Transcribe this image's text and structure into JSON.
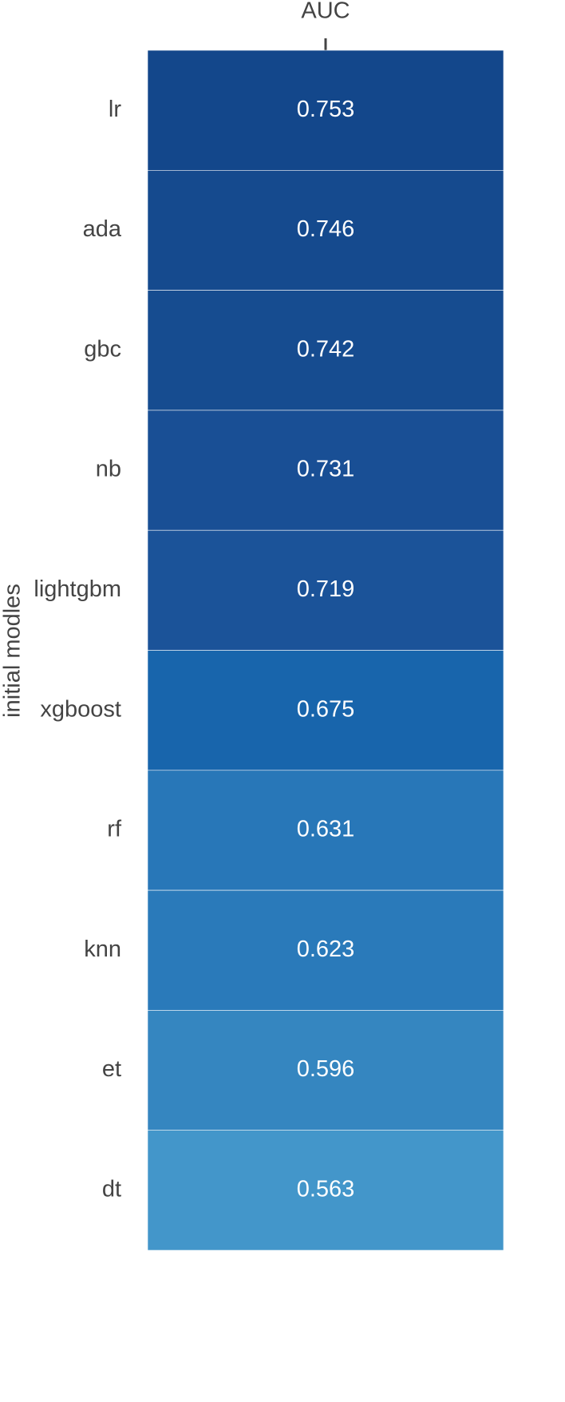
{
  "chart_data": {
    "type": "heatmap",
    "ylabel": "initial modles",
    "x_categories": [
      "AUC"
    ],
    "y_categories": [
      "lr",
      "ada",
      "gbc",
      "nb",
      "lightgbm",
      "xgboost",
      "rf",
      "knn",
      "et",
      "dt"
    ],
    "values": [
      [
        0.753
      ],
      [
        0.746
      ],
      [
        0.742
      ],
      [
        0.731
      ],
      [
        0.719
      ],
      [
        0.675
      ],
      [
        0.631
      ],
      [
        0.623
      ],
      [
        0.596
      ],
      [
        0.563
      ]
    ],
    "colors": [
      [
        "#13478b"
      ],
      [
        "#154a8e"
      ],
      [
        "#164c90"
      ],
      [
        "#194f95"
      ],
      [
        "#1b5399"
      ],
      [
        "#1865ac"
      ],
      [
        "#2877b8"
      ],
      [
        "#2a7aba"
      ],
      [
        "#3586c0"
      ],
      [
        "#4396ca"
      ]
    ]
  }
}
